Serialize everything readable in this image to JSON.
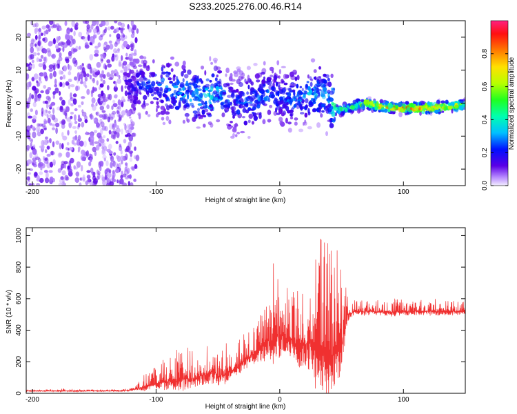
{
  "title": "S233.2025.276.00.46.R14",
  "chart_data": [
    {
      "type": "heatmap",
      "xlabel": "Height of straight line (km)",
      "ylabel": "Frequency (Hz)",
      "xlim": [
        -205,
        150
      ],
      "ylim": [
        -25,
        25
      ],
      "xticks": [
        -200,
        -100,
        0,
        100
      ],
      "xtick_labels": [
        "-200",
        "-100",
        "0",
        "100"
      ],
      "yticks": [
        -20,
        -10,
        0,
        10,
        20
      ],
      "ytick_labels": [
        "-20",
        "-10",
        "0",
        "10",
        "20"
      ],
      "colorbar": {
        "label": "Normalized spectral amplitude",
        "range": [
          0,
          1
        ],
        "ticks": [
          0.0,
          0.2,
          0.4,
          0.6,
          0.8
        ],
        "tick_labels": [
          "0.0",
          "0.2",
          "0.4",
          "0.6",
          "0.8"
        ]
      },
      "spectral_ridge": {
        "x": [
          -200,
          -150,
          -120,
          -100,
          -80,
          -60,
          -50,
          -40,
          -30,
          -20,
          -10,
          0,
          10,
          20,
          30,
          40,
          45,
          50,
          60,
          70,
          80,
          100,
          120,
          150
        ],
        "frequency": [
          0,
          0,
          5,
          6,
          3,
          2,
          3,
          0,
          0,
          1,
          3,
          2,
          1,
          3,
          3,
          2,
          -2,
          -2,
          -1,
          0,
          -1,
          -1.5,
          -1.5,
          -0.5
        ],
        "peak_amplitude": [
          0.05,
          0.05,
          0.15,
          0.25,
          0.3,
          0.35,
          0.35,
          0.2,
          0.25,
          0.25,
          0.25,
          0.2,
          0.25,
          0.3,
          0.3,
          0.3,
          0.5,
          0.5,
          0.55,
          0.65,
          0.8,
          0.9,
          0.9,
          0.55
        ]
      }
    },
    {
      "type": "line",
      "xlabel": "Height of straight line (km)",
      "ylabel": "SNR (10 * v/v)",
      "xlim": [
        -205,
        150
      ],
      "ylim": [
        0,
        1050
      ],
      "xticks": [
        -200,
        -100,
        0,
        100
      ],
      "xtick_labels": [
        "-200",
        "-100",
        "0",
        "100"
      ],
      "yticks": [
        0,
        200,
        400,
        600,
        800,
        1000
      ],
      "ytick_labels": [
        "0",
        "200",
        "400",
        "600",
        "800",
        "1000"
      ],
      "color": "#f03030",
      "series": [
        {
          "x": [
            -205,
            -190,
            -175,
            -160,
            -145,
            -130,
            -120,
            -115,
            -110,
            -100,
            -90,
            -80,
            -70,
            -60,
            -55,
            -50,
            -45,
            -40,
            -35,
            -30,
            -25,
            -20,
            -15,
            -10,
            -5,
            0,
            5,
            10,
            15,
            20,
            25,
            30,
            35,
            40,
            45,
            50,
            55,
            60,
            70,
            80,
            90,
            100,
            110,
            120,
            130,
            140,
            150
          ],
          "baseline": [
            15,
            15,
            15,
            15,
            15,
            15,
            20,
            30,
            40,
            60,
            80,
            90,
            100,
            120,
            150,
            120,
            130,
            140,
            160,
            200,
            230,
            260,
            300,
            330,
            350,
            370,
            360,
            340,
            300,
            320,
            330,
            250,
            260,
            240,
            280,
            300,
            500,
            520,
            520,
            520,
            515,
            520,
            520,
            520,
            520,
            520,
            525
          ],
          "upper": [
            25,
            25,
            30,
            25,
            25,
            25,
            35,
            60,
            120,
            170,
            250,
            320,
            290,
            320,
            420,
            350,
            380,
            250,
            300,
            380,
            400,
            480,
            600,
            720,
            820,
            780,
            700,
            650,
            700,
            760,
            880,
            990,
            1040,
            1000,
            980,
            780,
            620,
            600,
            600,
            595,
            600,
            595,
            590,
            600,
            600,
            595,
            590
          ]
        }
      ]
    }
  ]
}
